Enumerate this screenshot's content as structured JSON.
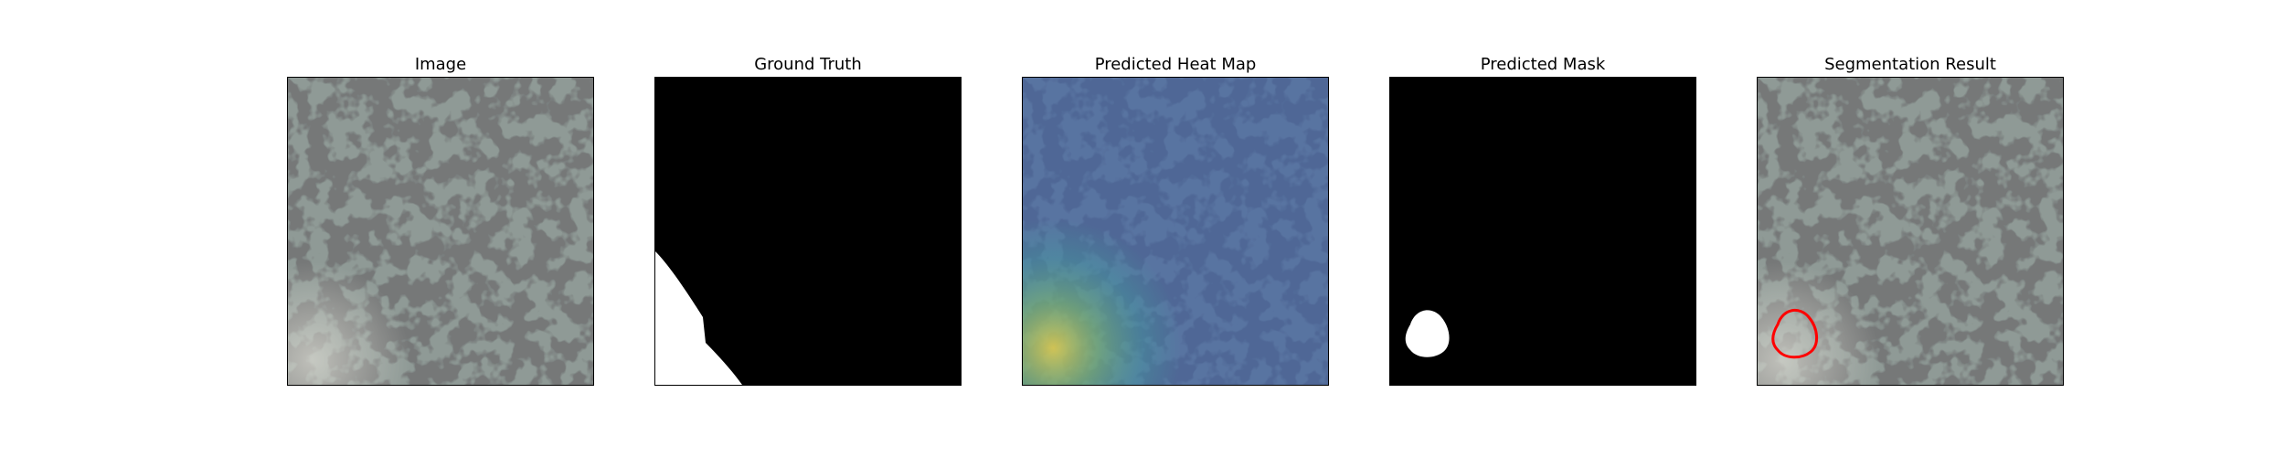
{
  "figure": {
    "panels": [
      {
        "id": "image",
        "title": "Image"
      },
      {
        "id": "ground-truth",
        "title": "Ground Truth"
      },
      {
        "id": "heatmap",
        "title": "Predicted Heat Map"
      },
      {
        "id": "mask",
        "title": "Predicted Mask"
      },
      {
        "id": "segmentation",
        "title": "Segmentation Result"
      }
    ],
    "colors": {
      "texture_light": "#8f9a96",
      "texture_dark": "#2e3131",
      "mask_fg": "#ffffff",
      "mask_bg": "#000000",
      "heat_low": "#3b4fa8",
      "heat_mid": "#3fa6a0",
      "heat_high": "#e6d24a",
      "contour": "#ff0000"
    }
  }
}
